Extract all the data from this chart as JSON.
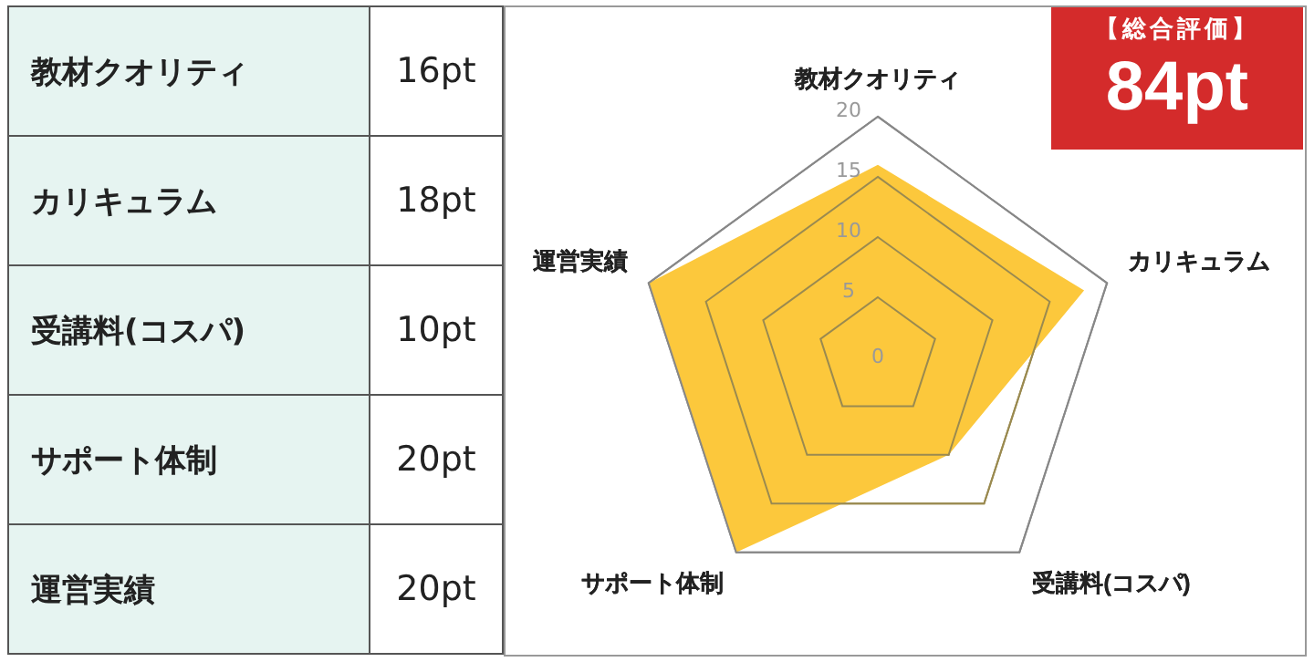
{
  "chart_data": [
    {
      "type": "other",
      "annotations": [
        "教材クオリティ",
        "16pt",
        "カリキュラム",
        "18pt",
        "受講料(コスパ)",
        "10pt",
        "サポート体制",
        "20pt",
        "運営実績",
        "20pt"
      ]
    },
    {
      "type": "radar",
      "categories": [
        "教材クオリティ",
        "カリキュラム",
        "受講料(コスパ)",
        "サポート体制",
        "運営実績"
      ],
      "series": [
        {
          "color": "#fcc83c",
          "values": [
            16,
            18,
            10,
            20,
            20
          ]
        }
      ],
      "ylim": [
        0,
        20
      ],
      "yticks": [
        0,
        5,
        10,
        15,
        20
      ],
      "grid": true,
      "legend": false,
      "marker": "none",
      "annotations": [
        "【総合評価】",
        "84pt"
      ]
    }
  ]
}
